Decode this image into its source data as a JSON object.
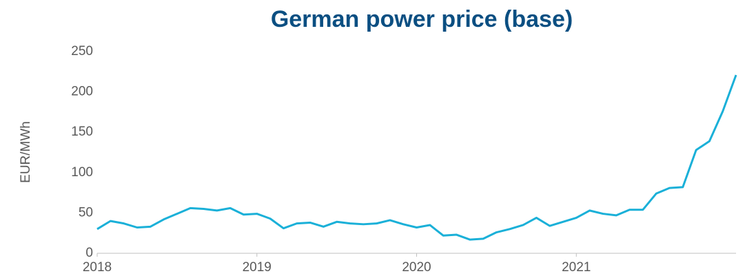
{
  "chart_data": {
    "type": "line",
    "title": "German power price (base)",
    "y_label": "EUR/MWh",
    "x": [
      2018,
      2018.0833,
      2018.1667,
      2018.25,
      2018.3333,
      2018.4167,
      2018.5,
      2018.5833,
      2018.6667,
      2018.75,
      2018.8333,
      2018.9167,
      2019,
      2019.0833,
      2019.1667,
      2019.25,
      2019.3333,
      2019.4167,
      2019.5,
      2019.5833,
      2019.6667,
      2019.75,
      2019.8333,
      2019.9167,
      2020,
      2020.0833,
      2020.1667,
      2020.25,
      2020.3333,
      2020.4167,
      2020.5,
      2020.5833,
      2020.6667,
      2020.75,
      2020.8333,
      2020.9167,
      2021,
      2021.0833,
      2021.1667,
      2021.25,
      2021.3333,
      2021.4167,
      2021.5,
      2021.5833,
      2021.6667,
      2021.75,
      2021.8333,
      2021.9167,
      2022
    ],
    "series": [
      {
        "name": "German power price (base)",
        "color": "#1ab0d8",
        "values": [
          30,
          40,
          37,
          32,
          33,
          42,
          49,
          56,
          55,
          53,
          56,
          48,
          49,
          43,
          31,
          37,
          38,
          33,
          39,
          37,
          36,
          37,
          41,
          36,
          32,
          35,
          22,
          23,
          17,
          18,
          26,
          30,
          35,
          44,
          34,
          39,
          44,
          53,
          49,
          47,
          54,
          54,
          74,
          81,
          82,
          128,
          139,
          176,
          221
        ]
      }
    ],
    "xlim": [
      2018,
      2022
    ],
    "xticks": [
      2018,
      2019,
      2020,
      2021
    ],
    "ylim": [
      0,
      250
    ],
    "yticks": [
      0,
      50,
      100,
      150,
      200,
      250
    ]
  }
}
